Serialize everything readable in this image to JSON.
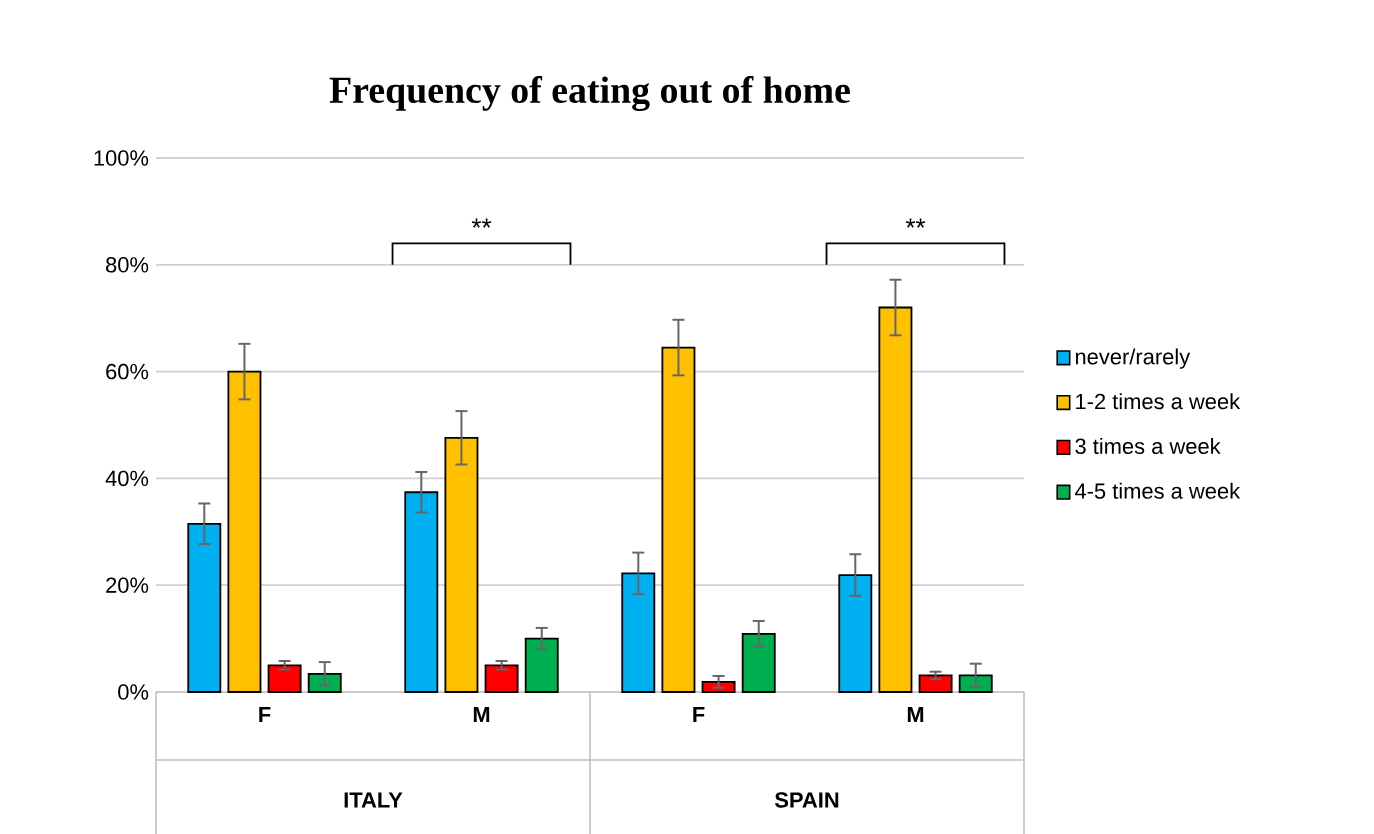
{
  "chart_data": {
    "type": "bar",
    "title": "Frequency of eating out of home",
    "categories": [
      "F",
      "M",
      "F",
      "M"
    ],
    "series": [
      {
        "name": "never/rarely",
        "color": "#00b0f0",
        "values": [
          31.5,
          37.4,
          22.2,
          21.9
        ],
        "errors": [
          3.8,
          3.8,
          3.9,
          3.9
        ]
      },
      {
        "name": "1-2 times a week",
        "color": "#ffc000",
        "values": [
          60,
          47.6,
          64.5,
          72
        ],
        "errors": [
          5.2,
          5,
          5.2,
          5.2
        ]
      },
      {
        "name": "3 times a week",
        "color": "#ff0000",
        "values": [
          5,
          5,
          1.9,
          3.1
        ],
        "errors": [
          0.8,
          0.8,
          1.1,
          0.7
        ]
      },
      {
        "name": "4-5 times a week",
        "color": "#00b050",
        "values": [
          3.4,
          10,
          10.9,
          3.1
        ],
        "errors": [
          2.2,
          2,
          2.4,
          2.2
        ]
      }
    ],
    "ylim": [
      0,
      100
    ],
    "yticks": [
      {
        "value": 0,
        "label": "0%"
      },
      {
        "value": 20,
        "label": "20%"
      },
      {
        "value": 40,
        "label": "40%"
      },
      {
        "value": 60,
        "label": "60%"
      },
      {
        "value": 80,
        "label": "80%"
      },
      {
        "value": 100,
        "label": "100%"
      }
    ],
    "annotations": [
      "**",
      "**",
      "ITALY",
      "SPAIN"
    ],
    "grid": "y",
    "legend": "right"
  }
}
